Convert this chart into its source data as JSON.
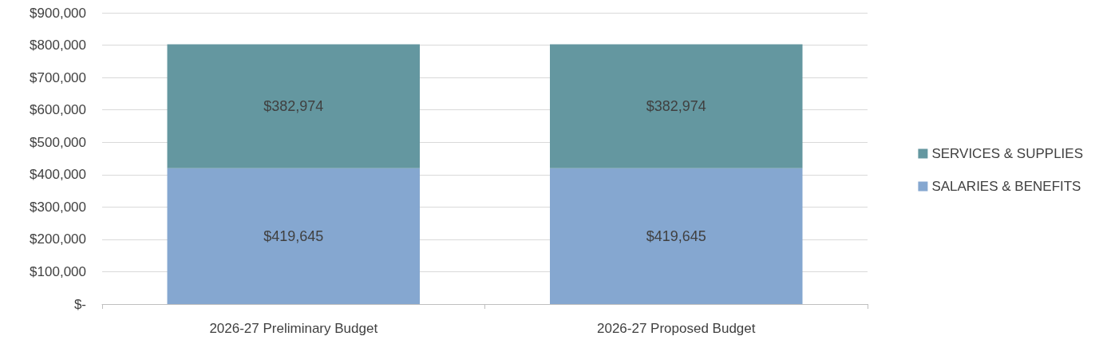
{
  "chart_data": {
    "type": "bar",
    "stacked": true,
    "categories": [
      "2026-27 Preliminary Budget",
      "2026-27 Proposed Budget"
    ],
    "series": [
      {
        "name": "SALARIES & BENEFITS",
        "color": "#85a7d0",
        "values": [
          419645,
          419645
        ],
        "value_labels": [
          "$419,645",
          "$419,645"
        ]
      },
      {
        "name": "SERVICES & SUPPLIES",
        "color": "#6497a0",
        "values": [
          382974,
          382974
        ],
        "value_labels": [
          "$382,974",
          "$382,974"
        ]
      }
    ],
    "ylim": [
      0,
      900000
    ],
    "yticks": [
      {
        "value": 0,
        "label": "$-"
      },
      {
        "value": 100000,
        "label": "$100,000"
      },
      {
        "value": 200000,
        "label": "$200,000"
      },
      {
        "value": 300000,
        "label": "$300,000"
      },
      {
        "value": 400000,
        "label": "$400,000"
      },
      {
        "value": 500000,
        "label": "$500,000"
      },
      {
        "value": 600000,
        "label": "$600,000"
      },
      {
        "value": 700000,
        "label": "$700,000"
      },
      {
        "value": 800000,
        "label": "$800,000"
      },
      {
        "value": 900000,
        "label": "$900,000"
      }
    ],
    "grid": "y",
    "legend": "right"
  }
}
